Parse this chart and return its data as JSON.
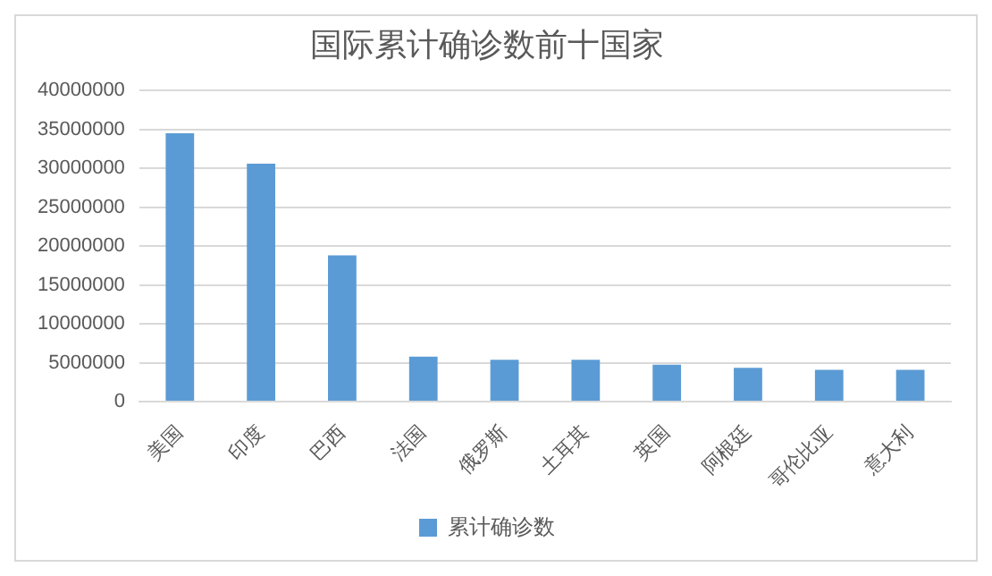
{
  "chart_data": {
    "type": "bar",
    "title": "国际累计确诊数前十国家",
    "categories": [
      "美国",
      "印度",
      "巴西",
      "法国",
      "俄罗斯",
      "土耳其",
      "英国",
      "阿根廷",
      "哥伦比亚",
      "意大利"
    ],
    "series": [
      {
        "name": "累计确诊数",
        "color": "#5b9bd5",
        "values": [
          34500000,
          30600000,
          18800000,
          5800000,
          5400000,
          5400000,
          4750000,
          4350000,
          4100000,
          4100000
        ]
      }
    ],
    "ylim": [
      0,
      40000000
    ],
    "yticks": [
      0,
      5000000,
      10000000,
      15000000,
      20000000,
      25000000,
      30000000,
      35000000,
      40000000
    ],
    "grid": "y",
    "legend": "bottom"
  }
}
